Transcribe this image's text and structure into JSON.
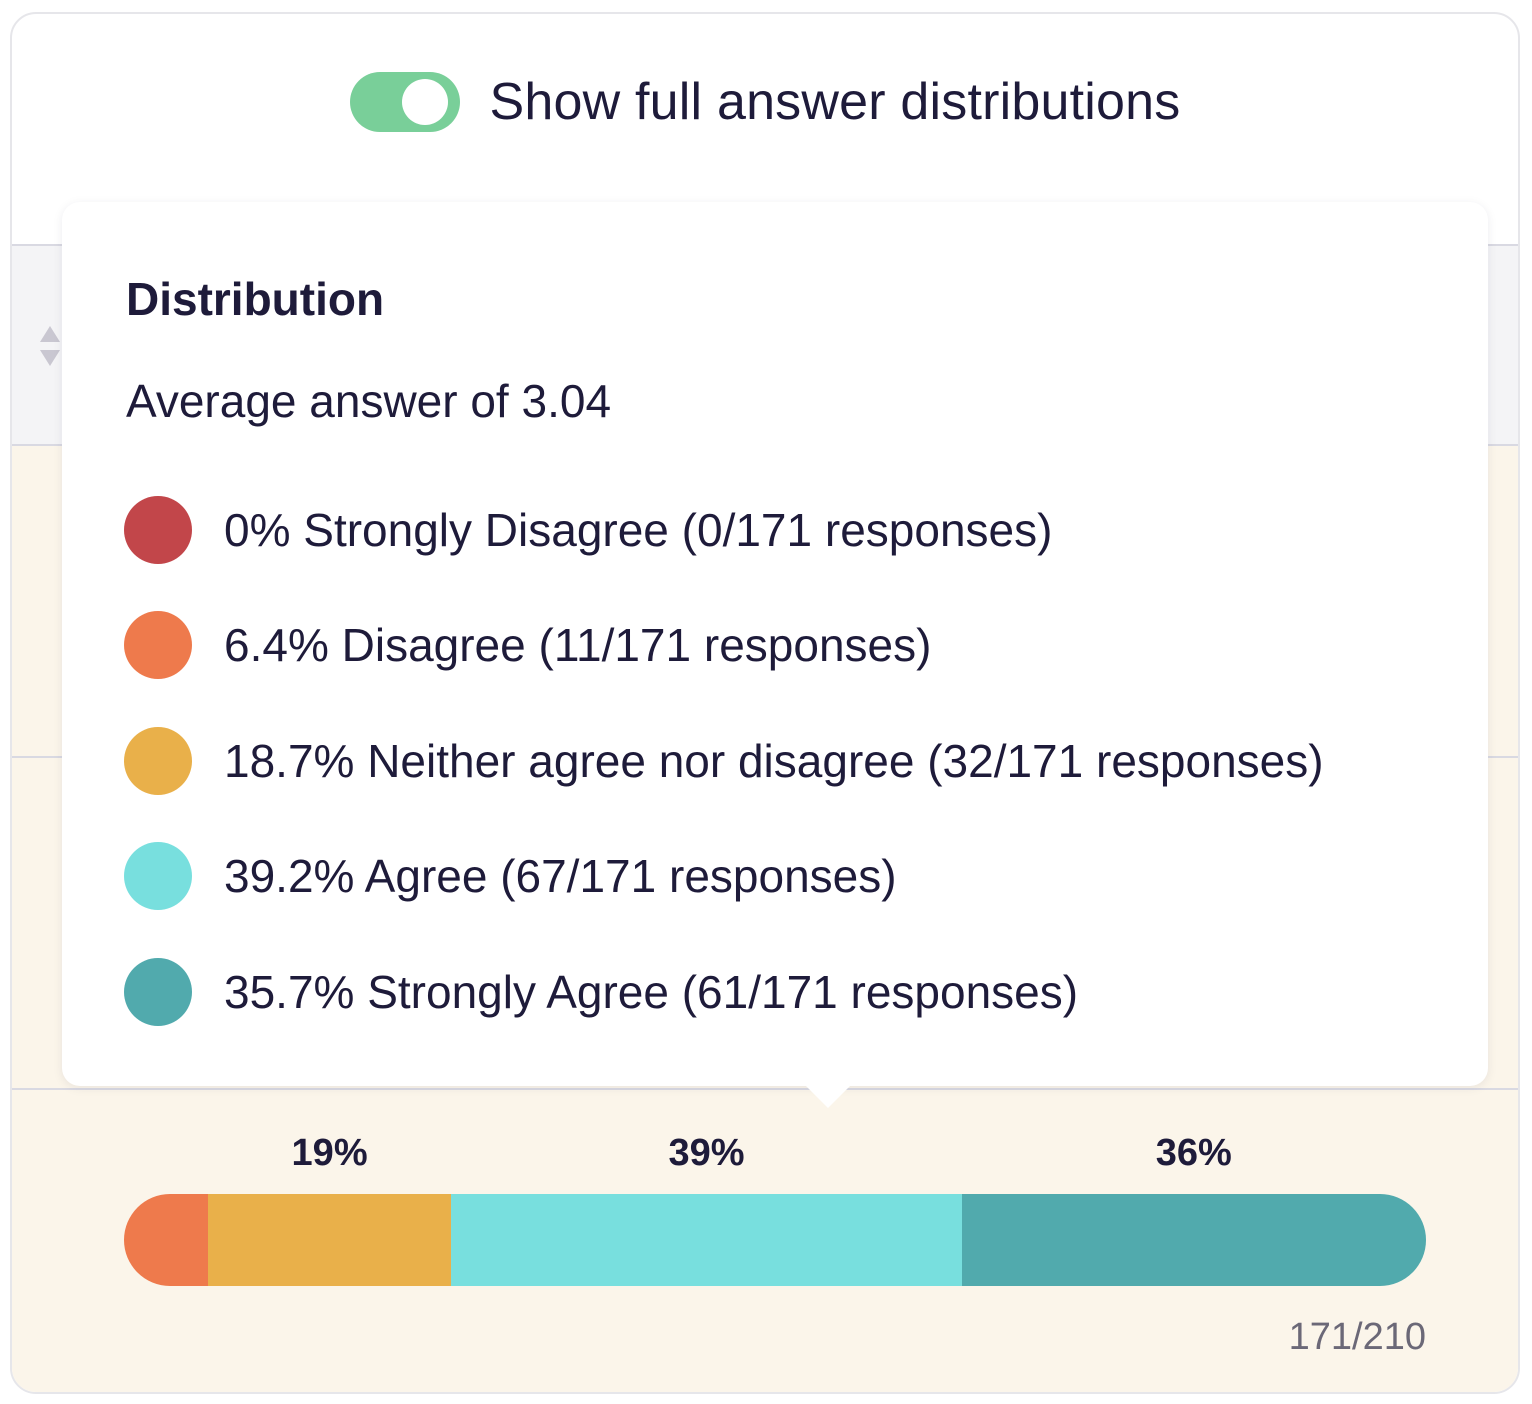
{
  "header": {
    "toggle_on": true,
    "toggle_label": "Show full answer distributions"
  },
  "colors": {
    "toggle": "#79cf99",
    "strongly_disagree": "#c2464a",
    "disagree": "#ee7a4c",
    "neutral": "#e9b04a",
    "agree": "#78dfde",
    "strongly_agree": "#51aaad",
    "background_cream": "#fbf5ea"
  },
  "popover": {
    "title": "Distribution",
    "average_text": "Average answer of 3.04",
    "items": [
      {
        "label": "0% Strongly Disagree (0/171 responses)",
        "color": "#c2464a",
        "percent": 0
      },
      {
        "label": "6.4% Disagree (11/171 responses)",
        "color": "#ee7a4c",
        "percent": 6.4
      },
      {
        "label": "18.7% Neither agree nor disagree (32/171 responses)",
        "color": "#e9b04a",
        "percent": 18.7
      },
      {
        "label": "39.2% Agree (67/171 responses)",
        "color": "#78dfde",
        "percent": 39.2
      },
      {
        "label": "35.7% Strongly Agree (61/171 responses)",
        "color": "#51aaad",
        "percent": 35.7
      }
    ]
  },
  "chart_data": {
    "type": "bar",
    "orientation": "horizontal-stacked",
    "categories": [
      "Strongly Disagree",
      "Disagree",
      "Neither agree nor disagree",
      "Agree",
      "Strongly Agree"
    ],
    "values": [
      0,
      11,
      32,
      67,
      61
    ],
    "percent": [
      0,
      6.4,
      18.7,
      39.2,
      35.7
    ],
    "total": 171,
    "data_labels": [
      "",
      "",
      "19%",
      "39%",
      "36%"
    ],
    "response_count_text": "171/210"
  }
}
